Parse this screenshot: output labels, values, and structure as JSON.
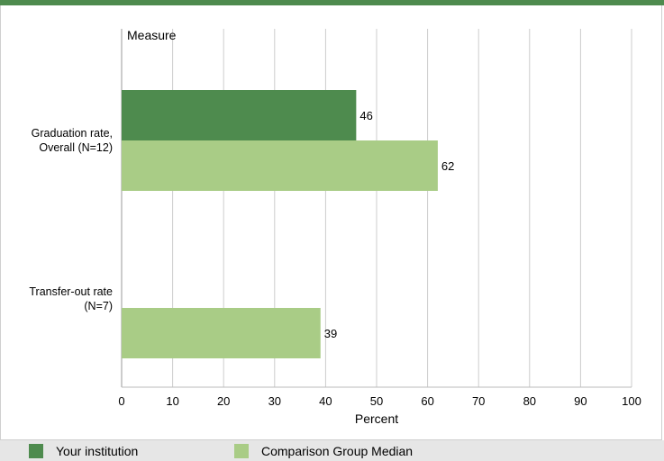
{
  "chart_data": {
    "type": "bar",
    "orientation": "horizontal",
    "ylabel": "Measure",
    "xlabel": "Percent",
    "xlim": [
      0,
      100
    ],
    "xticks": [
      0,
      10,
      20,
      30,
      40,
      50,
      60,
      70,
      80,
      90,
      100
    ],
    "grid": true,
    "categories": [
      [
        "Graduation rate,",
        "Overall (N=12)"
      ],
      [
        "Transfer-out rate",
        "(N=7)"
      ]
    ],
    "series": [
      {
        "name": "Your institution",
        "color": "#4e8b4e",
        "values": [
          46,
          null
        ]
      },
      {
        "name": "Comparison Group Median",
        "color": "#a9cc86",
        "values": [
          62,
          39
        ]
      }
    ],
    "legend_position": "bottom"
  }
}
